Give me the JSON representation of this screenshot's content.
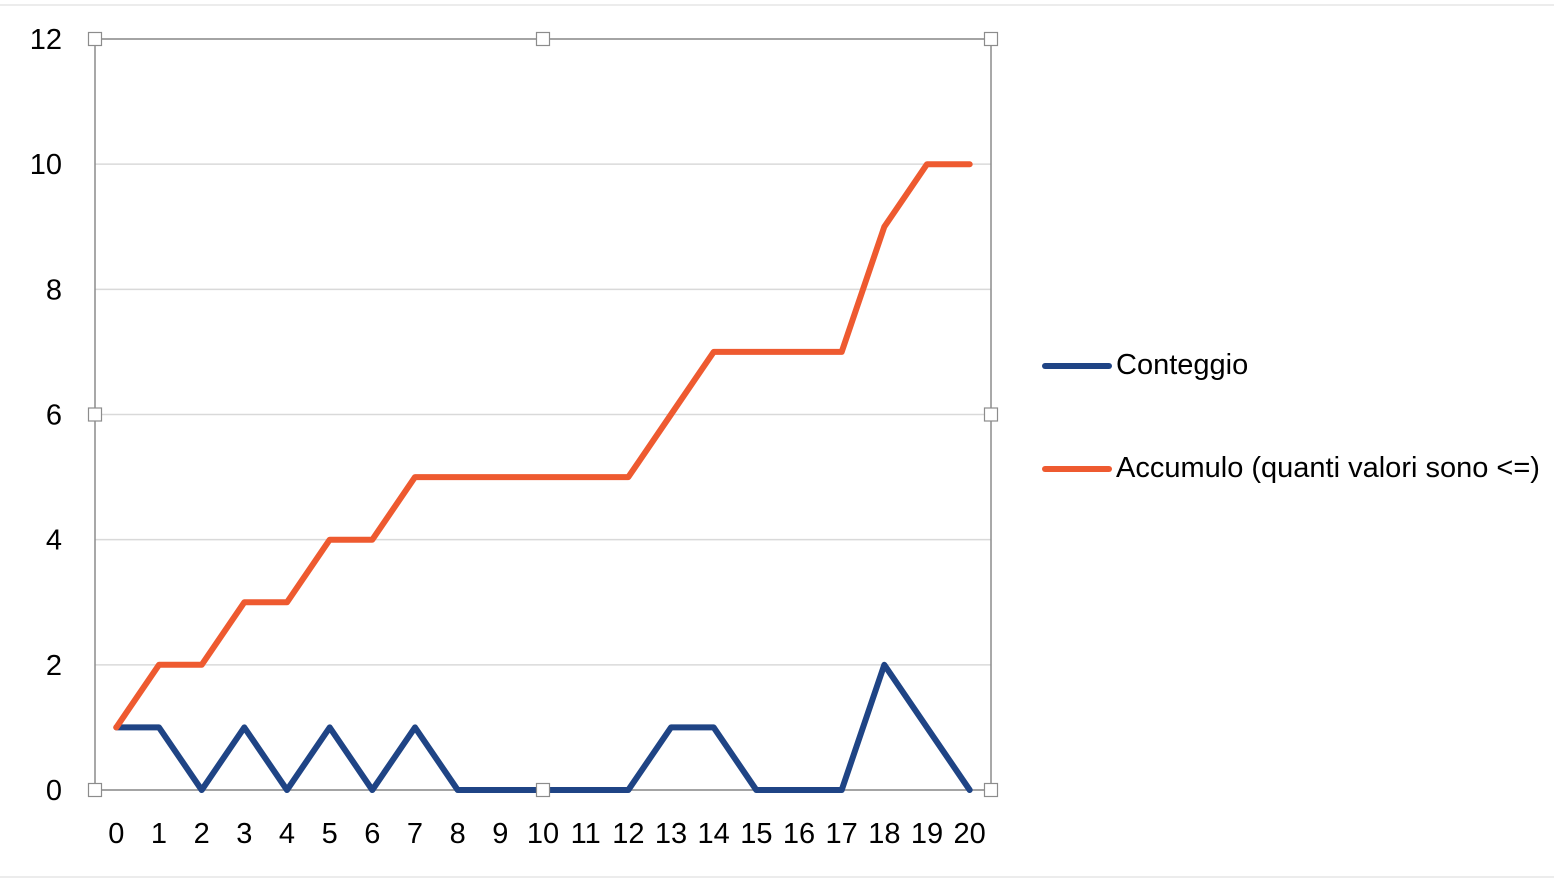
{
  "chart_data": {
    "type": "line",
    "title": "",
    "xlabel": "",
    "ylabel": "",
    "categories": [
      "0",
      "1",
      "2",
      "3",
      "4",
      "5",
      "6",
      "7",
      "8",
      "9",
      "10",
      "11",
      "12",
      "13",
      "14",
      "15",
      "16",
      "17",
      "18",
      "19",
      "20"
    ],
    "ylim": [
      0,
      12
    ],
    "yticks": [
      "0",
      "2",
      "4",
      "6",
      "8",
      "10",
      "12"
    ],
    "grid": true,
    "legend_position": "right",
    "series": [
      {
        "name": "Conteggio",
        "color": "#1F4485",
        "values": [
          1,
          1,
          0,
          1,
          0,
          1,
          0,
          1,
          0,
          0,
          0,
          0,
          0,
          1,
          1,
          0,
          0,
          0,
          2,
          1,
          0
        ]
      },
      {
        "name": "Accumulo (quanti valori sono <=)",
        "color": "#EE5A30",
        "values": [
          1,
          2,
          2,
          3,
          3,
          4,
          4,
          5,
          5,
          5,
          5,
          5,
          5,
          6,
          7,
          7,
          7,
          7,
          9,
          10,
          10
        ]
      }
    ]
  }
}
